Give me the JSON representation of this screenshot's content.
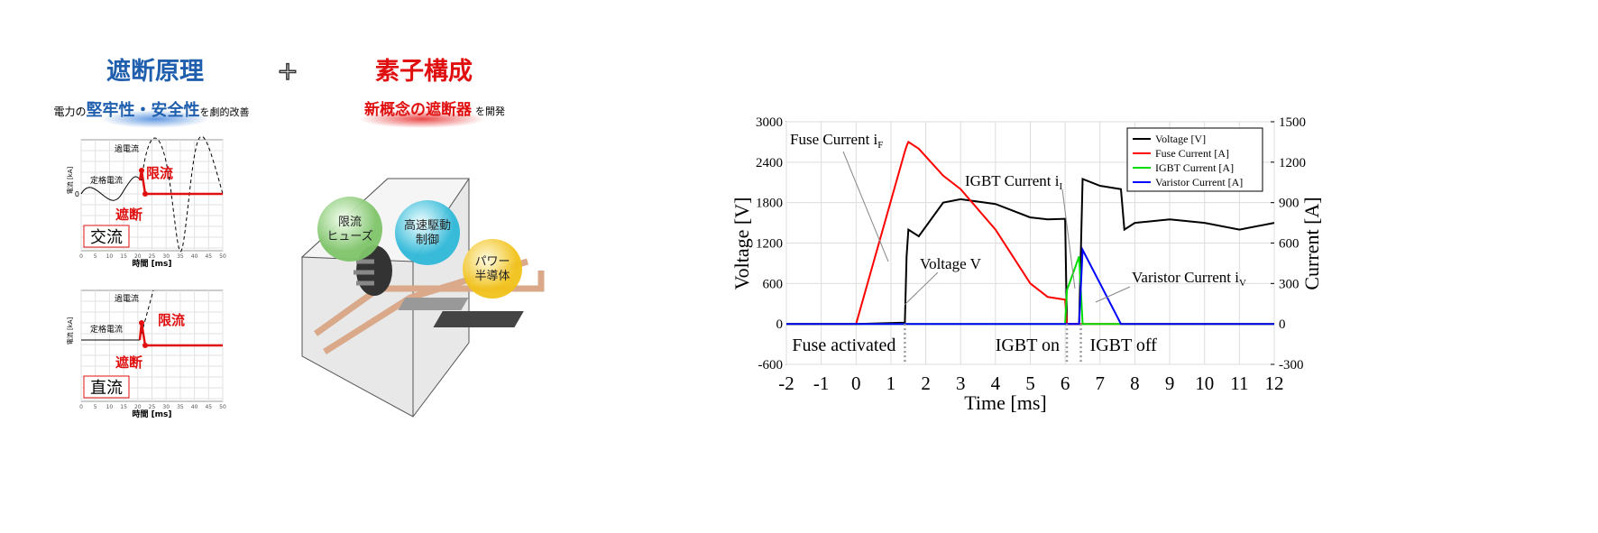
{
  "diagram": {
    "principle": {
      "title": "遮断原理",
      "subtitle": [
        "電力の",
        "堅牢性・安全性",
        "を劇的改善"
      ]
    },
    "composition": {
      "title": "素子構成",
      "subtitle": [
        "新概念の遮断器",
        "を開発"
      ]
    },
    "ac_chart": {
      "ylabel": "電流 [kA]",
      "xlabel": "時間 [ms]",
      "xlim": [
        0,
        50
      ],
      "xticks": [
        0,
        5,
        10,
        15,
        20,
        25,
        30,
        35,
        40,
        45,
        50
      ],
      "yticks": [
        0
      ],
      "labels": {
        "over": "過電流",
        "rated": "定格電流",
        "limit": "限流",
        "cut": "遮断",
        "kind": "交流"
      }
    },
    "dc_chart": {
      "ylabel": "電流 [kA]",
      "xlabel": "時間 [ms]",
      "xlim": [
        0,
        50
      ],
      "xticks": [
        0,
        5,
        10,
        15,
        20,
        25,
        30,
        35,
        40,
        45,
        50
      ],
      "labels": {
        "over": "過電流",
        "rated": "定格電流",
        "limit": "限流",
        "cut": "遮断",
        "kind": "直流"
      }
    },
    "bubbles": [
      [
        "限流",
        "ヒューズ"
      ],
      [
        "高速駆動",
        "制御"
      ],
      [
        "パワー",
        "半導体"
      ]
    ]
  },
  "chart_data": {
    "type": "line",
    "xlabel": "Time [ms]",
    "ylabel": "Voltage [V]",
    "y2label": "Current [A]",
    "xlim": [
      -2,
      12
    ],
    "xticks": [
      -2,
      -1,
      0,
      1,
      2,
      3,
      4,
      5,
      6,
      7,
      8,
      9,
      10,
      11,
      12
    ],
    "ylim": [
      -600,
      3000
    ],
    "yticks": [
      -600,
      0,
      600,
      1200,
      1800,
      2400,
      3000
    ],
    "y2lim": [
      -300,
      1500
    ],
    "y2ticks": [
      -300,
      0,
      300,
      600,
      900,
      1200,
      1500
    ],
    "grid": true,
    "legend": "upper right",
    "x": [
      -2,
      0,
      1.4,
      1.45,
      1.5,
      1.8,
      2.5,
      3,
      4,
      5,
      5.5,
      6,
      6.05,
      6.4,
      6.5,
      7,
      7.6,
      7.7,
      8,
      9,
      10,
      11,
      12
    ],
    "series": [
      {
        "name": "Voltage [V]",
        "color": "#000000",
        "axis": "y",
        "values": [
          0,
          0,
          20,
          1000,
          1400,
          1300,
          1800,
          1850,
          1780,
          1580,
          1550,
          1560,
          0,
          0,
          2150,
          2050,
          2000,
          1400,
          1500,
          1550,
          1500,
          1400,
          1500
        ]
      },
      {
        "name": "Fuse Current [A]",
        "color": "#ff0000",
        "axis": "y2",
        "values": [
          0,
          0,
          1280,
          1320,
          1350,
          1300,
          1100,
          1000,
          700,
          300,
          200,
          180,
          0,
          0,
          0,
          0,
          0,
          0,
          0,
          0,
          0,
          0,
          0
        ]
      },
      {
        "name": "IGBT Current [A]",
        "color": "#00dd00",
        "axis": "y2",
        "values": [
          0,
          0,
          0,
          0,
          0,
          0,
          0,
          0,
          0,
          0,
          0,
          0,
          250,
          500,
          0,
          0,
          0,
          0,
          0,
          0,
          0,
          0,
          0
        ]
      },
      {
        "name": "Varistor Current [A]",
        "color": "#0000ff",
        "axis": "y2",
        "values": [
          0,
          0,
          0,
          0,
          0,
          0,
          0,
          0,
          0,
          0,
          0,
          0,
          0,
          0,
          550,
          300,
          0,
          0,
          0,
          0,
          0,
          0,
          0
        ]
      }
    ],
    "annotations": [
      {
        "text": "Fuse Current i",
        "sub": "F"
      },
      {
        "text": "Voltage V"
      },
      {
        "text": "IGBT Current i",
        "sub": "I"
      },
      {
        "text": "Varistor Current i",
        "sub": "V"
      }
    ],
    "events": [
      {
        "label": "Fuse activated",
        "x": 1.4
      },
      {
        "label": "IGBT on",
        "x": 6.05
      },
      {
        "label": "IGBT off",
        "x": 6.45
      }
    ]
  }
}
